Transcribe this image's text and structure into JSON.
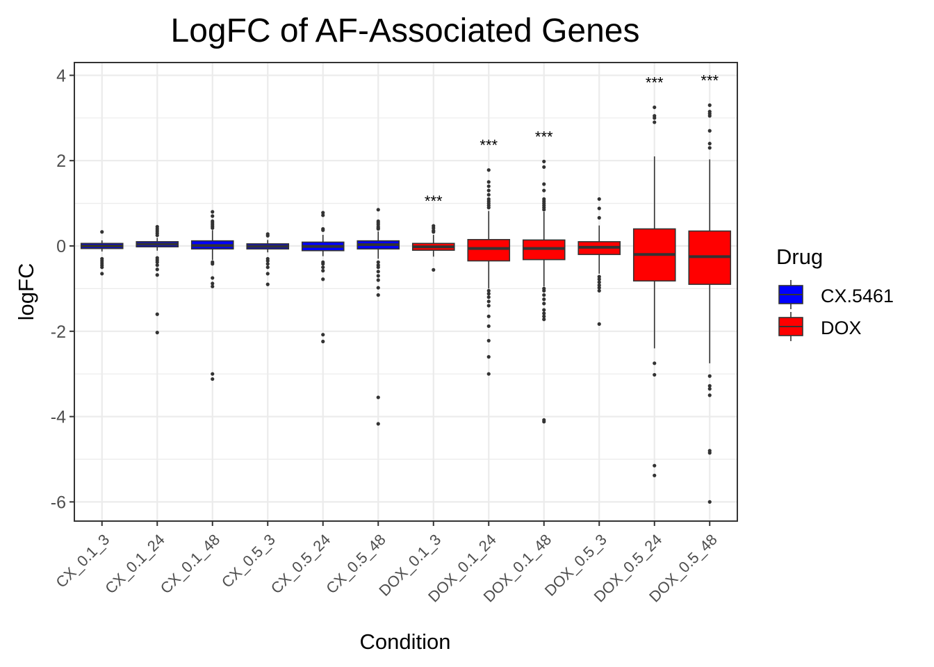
{
  "chart_data": {
    "type": "box",
    "title": "LogFC of AF-Associated Genes",
    "xlabel": "Condition",
    "ylabel": "logFC",
    "ylim": [
      -6.45,
      4.3
    ],
    "yticks": [
      4,
      2,
      0,
      -2,
      -4,
      -6
    ],
    "grid": true,
    "legend": {
      "title": "Drug",
      "position": "right",
      "entries": [
        {
          "name": "CX.5461",
          "color": "#0000FF"
        },
        {
          "name": "DOX",
          "color": "#FF0000"
        }
      ]
    },
    "categories": [
      {
        "label": "CX_0.1_3",
        "drug": "CX.5461",
        "q1": -0.06,
        "median": 0.0,
        "q3": 0.06,
        "whisker_low": -0.13,
        "whisker_high": 0.13,
        "outliers": [
          0.33,
          -0.3,
          -0.35,
          -0.4,
          -0.45,
          -0.5,
          -0.65
        ],
        "signif": ""
      },
      {
        "label": "CX_0.1_24",
        "drug": "CX.5461",
        "q1": -0.02,
        "median": 0.04,
        "q3": 0.1,
        "whisker_low": -0.11,
        "whisker_high": 0.19,
        "outliers": [
          0.45,
          0.4,
          0.35,
          0.3,
          0.25,
          -0.28,
          -0.33,
          -0.38,
          -0.45,
          -0.55,
          -0.68,
          -1.6,
          -2.03
        ],
        "signif": ""
      },
      {
        "label": "CX_0.1_48",
        "drug": "CX.5461",
        "q1": -0.07,
        "median": 0.01,
        "q3": 0.12,
        "whisker_low": -0.33,
        "whisker_high": 0.37,
        "outliers": [
          0.8,
          0.7,
          0.58,
          0.54,
          0.5,
          0.46,
          0.42,
          -0.38,
          -0.42,
          -0.75,
          -0.88,
          -0.95,
          -3.0,
          -3.12
        ],
        "signif": ""
      },
      {
        "label": "CX_0.5_3",
        "drug": "CX.5461",
        "q1": -0.07,
        "median": -0.01,
        "q3": 0.05,
        "whisker_low": -0.15,
        "whisker_high": 0.14,
        "outliers": [
          0.28,
          0.24,
          -0.3,
          -0.35,
          -0.42,
          -0.5,
          -0.65,
          -0.9
        ],
        "signif": ""
      },
      {
        "label": "CX_0.5_24",
        "drug": "CX.5461",
        "q1": -0.11,
        "median": -0.01,
        "q3": 0.09,
        "whisker_low": -0.24,
        "whisker_high": 0.26,
        "outliers": [
          0.78,
          0.72,
          0.4,
          0.37,
          -0.38,
          -0.42,
          -0.5,
          -0.58,
          -0.78,
          -2.08,
          -2.24
        ],
        "signif": ""
      },
      {
        "label": "CX_0.5_48",
        "drug": "CX.5461",
        "q1": -0.07,
        "median": 0.03,
        "q3": 0.12,
        "whisker_low": -0.3,
        "whisker_high": 0.34,
        "outliers": [
          0.85,
          0.58,
          0.54,
          0.5,
          0.45,
          0.42,
          0.4,
          -0.38,
          -0.45,
          -0.5,
          -0.6,
          -0.7,
          -0.8,
          -0.98,
          -1.15,
          -3.55,
          -4.17
        ],
        "signif": ""
      },
      {
        "label": "DOX_0.1_3",
        "drug": "DOX",
        "q1": -0.1,
        "median": -0.02,
        "q3": 0.06,
        "whisker_low": -0.25,
        "whisker_high": 0.26,
        "outliers": [
          0.47,
          0.42,
          0.36,
          0.33,
          -0.56
        ],
        "signif": "***"
      },
      {
        "label": "DOX_0.1_24",
        "drug": "DOX",
        "q1": -0.35,
        "median": -0.06,
        "q3": 0.15,
        "whisker_low": -1.0,
        "whisker_high": 0.82,
        "outliers": [
          1.78,
          1.5,
          1.4,
          1.3,
          1.2,
          1.1,
          1.05,
          1.0,
          0.95,
          0.9,
          -1.05,
          -1.12,
          -1.2,
          -1.3,
          -1.4,
          -1.65,
          -1.88,
          -2.22,
          -2.6,
          -3.0
        ],
        "signif": "***"
      },
      {
        "label": "DOX_0.1_48",
        "drug": "DOX",
        "q1": -0.32,
        "median": -0.06,
        "q3": 0.14,
        "whisker_low": -0.95,
        "whisker_high": 0.8,
        "outliers": [
          1.98,
          1.85,
          1.45,
          1.3,
          1.1,
          1.05,
          1.0,
          0.95,
          0.9,
          0.85,
          -1.0,
          -1.05,
          -1.15,
          -1.25,
          -1.35,
          -1.5,
          -1.58,
          -1.65,
          -1.72,
          -4.08,
          -4.12
        ],
        "signif": "***"
      },
      {
        "label": "DOX_0.5_3",
        "drug": "DOX",
        "q1": -0.2,
        "median": -0.03,
        "q3": 0.1,
        "whisker_low": -0.65,
        "whisker_high": 0.48,
        "outliers": [
          1.1,
          0.88,
          0.66,
          -0.72,
          -0.78,
          -0.85,
          -0.92,
          -0.98,
          -1.05,
          -1.83
        ],
        "signif": ""
      },
      {
        "label": "DOX_0.5_24",
        "drug": "DOX",
        "q1": -0.82,
        "median": -0.2,
        "q3": 0.4,
        "whisker_low": -2.4,
        "whisker_high": 2.1,
        "outliers": [
          3.25,
          3.05,
          3.0,
          2.9,
          -2.75,
          -3.02,
          -5.15,
          -5.38
        ],
        "signif": "***"
      },
      {
        "label": "DOX_0.5_48",
        "drug": "DOX",
        "q1": -0.9,
        "median": -0.25,
        "q3": 0.35,
        "whisker_low": -2.75,
        "whisker_high": 2.03,
        "outliers": [
          3.3,
          3.15,
          3.1,
          3.05,
          2.7,
          2.4,
          2.3,
          -3.05,
          -3.28,
          -3.35,
          -3.5,
          -4.8,
          -4.85,
          -6.0
        ],
        "signif": "***"
      }
    ]
  }
}
